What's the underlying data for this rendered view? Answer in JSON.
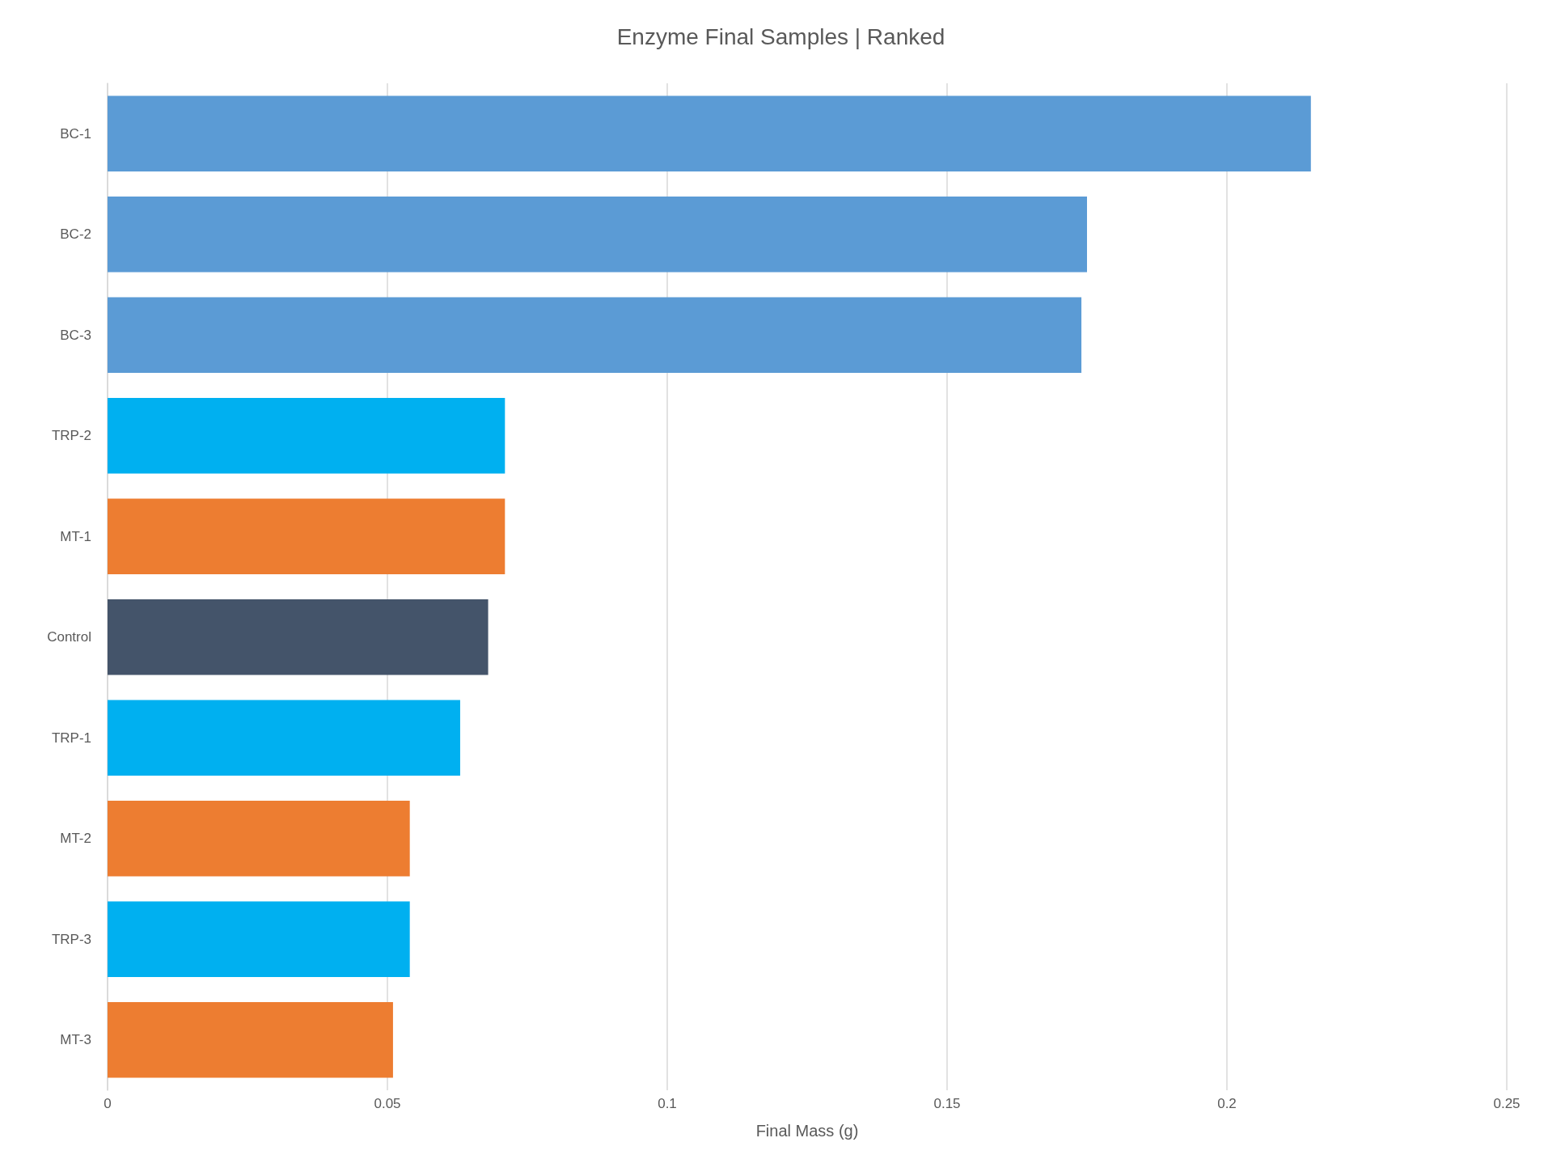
{
  "chart_data": {
    "type": "bar",
    "orientation": "horizontal",
    "title": "Enzyme Final Samples | Ranked",
    "xlabel": "Final Mass (g)",
    "categories": [
      "BC-1",
      "BC-2",
      "BC-3",
      "TRP-2",
      "MT-1",
      "Control",
      "TRP-1",
      "MT-2",
      "TRP-3",
      "MT-3"
    ],
    "values": [
      0.215,
      0.175,
      0.174,
      0.071,
      0.071,
      0.068,
      0.063,
      0.054,
      0.054,
      0.051
    ],
    "colors": [
      "#5b9bd5",
      "#5b9bd5",
      "#5b9bd5",
      "#00b0f0",
      "#ed7d31",
      "#44546a",
      "#00b0f0",
      "#ed7d31",
      "#00b0f0",
      "#ed7d31"
    ],
    "xlim": [
      0,
      0.25
    ],
    "xticks": [
      0,
      0.05,
      0.1,
      0.15,
      0.2,
      0.25
    ],
    "grid": "x"
  }
}
